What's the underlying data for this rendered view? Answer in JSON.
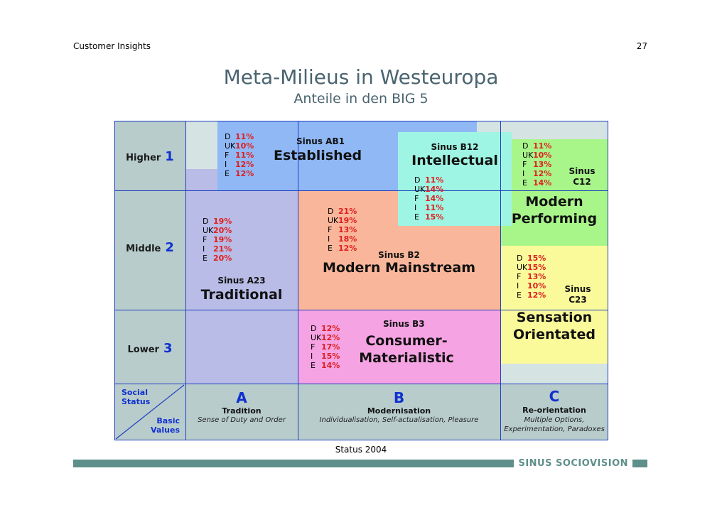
{
  "header": {
    "left": "Customer Insights",
    "page": "27"
  },
  "title": "Meta-Milieus in Westeuropa",
  "subtitle": "Anteile in den BIG 5",
  "rows": [
    {
      "label": "Higher",
      "num": "1"
    },
    {
      "label": "Middle",
      "num": "2"
    },
    {
      "label": "Lower",
      "num": "3"
    }
  ],
  "corner": {
    "top": "Social\nStatus",
    "bottom": "Basic\nValues"
  },
  "columns": [
    {
      "letter": "A",
      "name": "Tradition",
      "desc": "Sense of Duty and Order"
    },
    {
      "letter": "B",
      "name": "Modernisation",
      "desc": "Individualisation, Self-actualisation, Pleasure"
    },
    {
      "letter": "C",
      "name": "Re-orientation",
      "desc": "Multiple Options, Experimentation, Paradoxes"
    }
  ],
  "milieus": {
    "ab1": {
      "code": "Sinus AB1",
      "name": "Established",
      "color": "#8fb8f5",
      "stats": [
        [
          "D",
          "11%"
        ],
        [
          "UK",
          "10%"
        ],
        [
          "F",
          "11%"
        ],
        [
          "I",
          "12%"
        ],
        [
          "E",
          "12%"
        ]
      ]
    },
    "b12": {
      "code": "Sinus B12",
      "name": "Intellectual",
      "color": "#9ff5e3",
      "stats": [
        [
          "D",
          "11%"
        ],
        [
          "UK",
          "14%"
        ],
        [
          "F",
          "14%"
        ],
        [
          "I",
          "11%"
        ],
        [
          "E",
          "15%"
        ]
      ]
    },
    "c12": {
      "code": "Sinus C12",
      "name": "Modern Performing",
      "color": "#a8f58a",
      "stats": [
        [
          "D",
          "11%"
        ],
        [
          "UK",
          "10%"
        ],
        [
          "F",
          "13%"
        ],
        [
          "I",
          "12%"
        ],
        [
          "E",
          "14%"
        ]
      ]
    },
    "a23": {
      "code": "Sinus A23",
      "name": "Traditional",
      "color": "#b8bce6",
      "stats": [
        [
          "D",
          "19%"
        ],
        [
          "UK",
          "20%"
        ],
        [
          "F",
          "19%"
        ],
        [
          "I",
          "21%"
        ],
        [
          "E",
          "20%"
        ]
      ]
    },
    "b2": {
      "code": "Sinus B2",
      "name": "Modern Mainstream",
      "color": "#f9b69a",
      "stats": [
        [
          "D",
          "21%"
        ],
        [
          "UK",
          "19%"
        ],
        [
          "F",
          "13%"
        ],
        [
          "I",
          "18%"
        ],
        [
          "E",
          "12%"
        ]
      ]
    },
    "c23": {
      "code": "Sinus C23",
      "name": "Sensation Orientated",
      "color": "#fafa9a",
      "stats": [
        [
          "D",
          "15%"
        ],
        [
          "UK",
          "15%"
        ],
        [
          "F",
          "13%"
        ],
        [
          "I",
          "10%"
        ],
        [
          "E",
          "12%"
        ]
      ]
    },
    "b3": {
      "code": "Sinus B3",
      "name": "Consumer-Materialistic",
      "color": "#f5a3e3",
      "stats": [
        [
          "D",
          "12%"
        ],
        [
          "UK",
          "12%"
        ],
        [
          "F",
          "17%"
        ],
        [
          "I",
          "15%"
        ],
        [
          "E",
          "14%"
        ]
      ]
    }
  },
  "status": "Status 2004",
  "brand": "SINUS SOCIOVISION",
  "colors": {
    "axis": "#b8cccc",
    "grid": "#1f3fbf",
    "pct": "#e02020"
  }
}
